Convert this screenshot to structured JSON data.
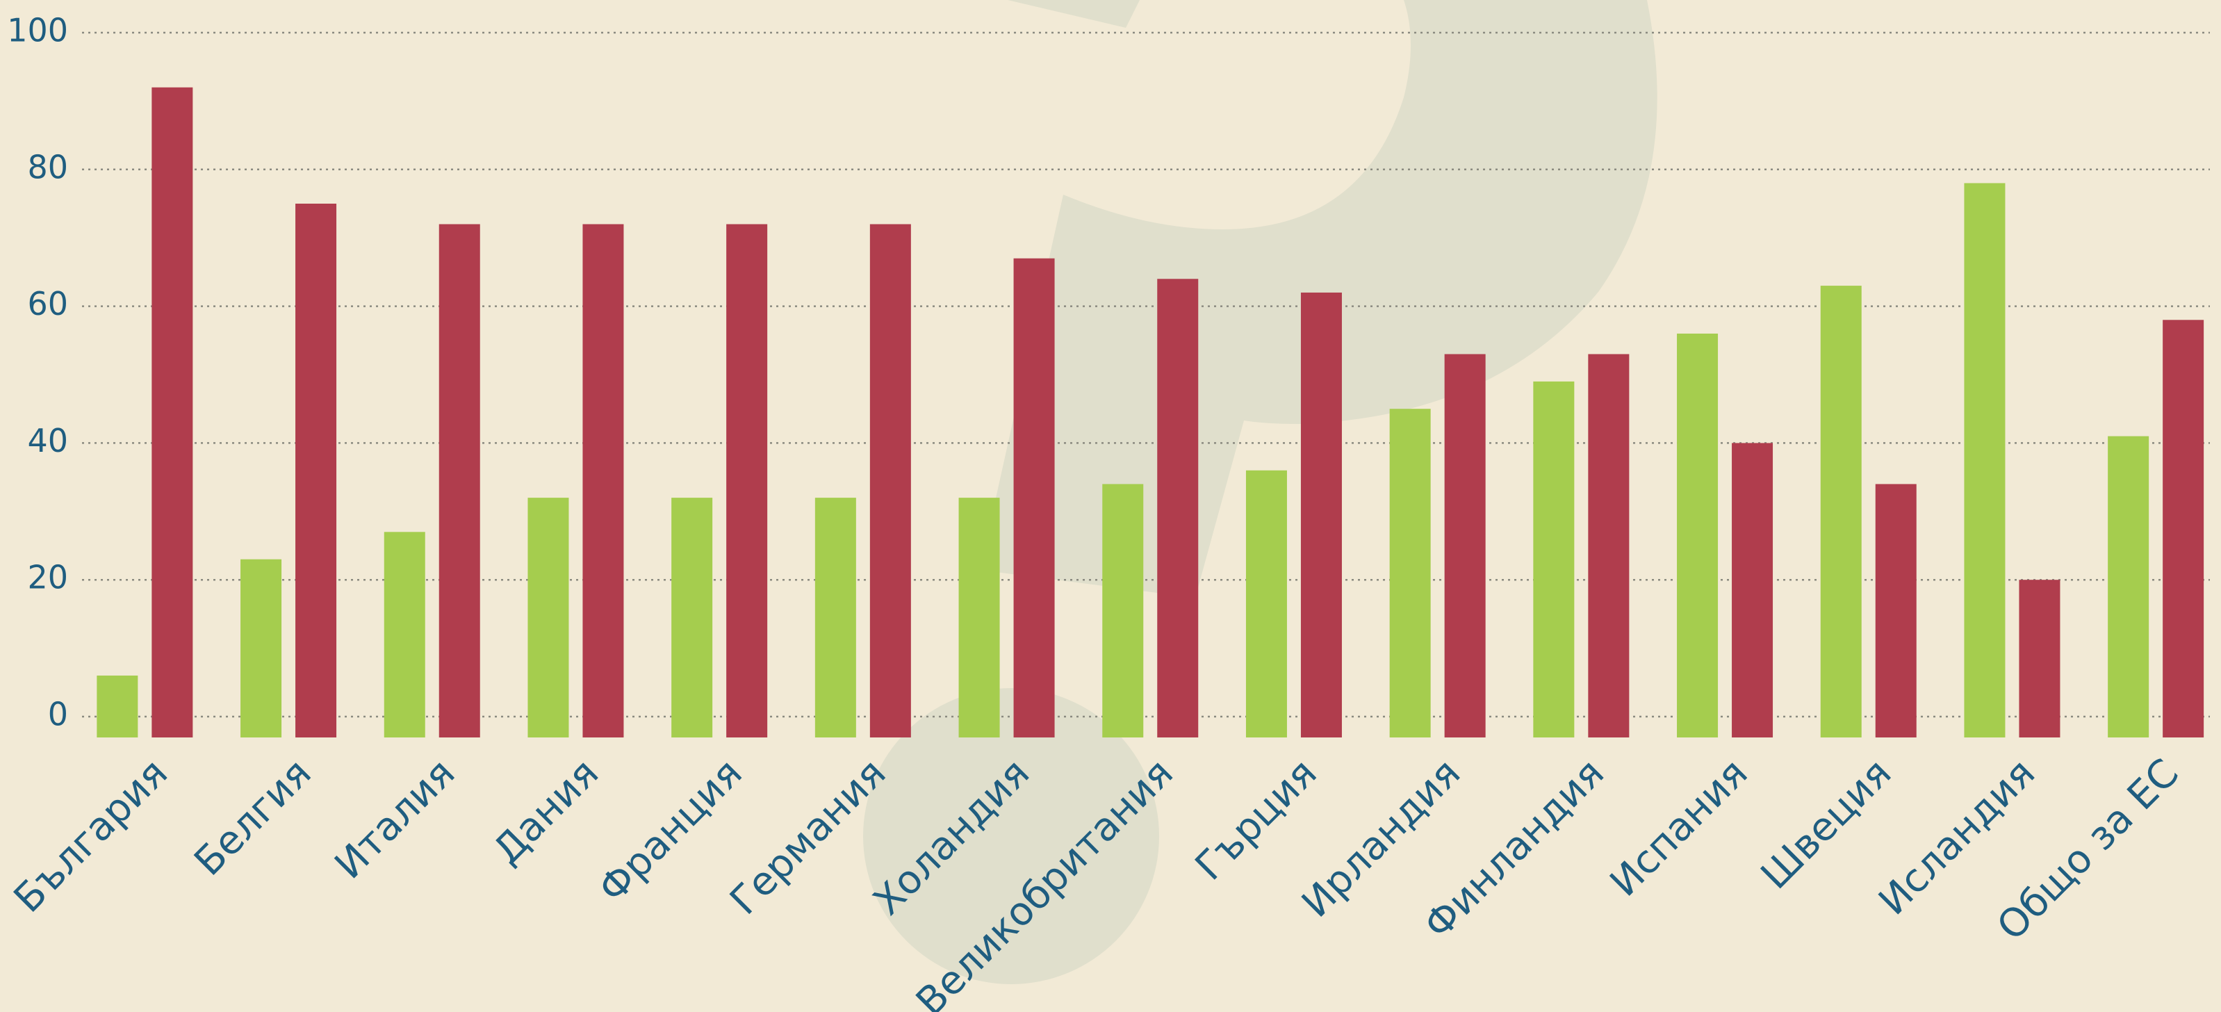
{
  "chart_data": {
    "type": "bar",
    "categories": [
      "България",
      "Белгия",
      "Италия",
      "Дания",
      "Франция",
      "Германия",
      "Холандия",
      "Великобритания",
      "Гърция",
      "Ирландия",
      "Финландия",
      "Испания",
      "Швеция",
      "Исландия",
      "Общо за ЕС"
    ],
    "series": [
      {
        "color": "#a5cd4e",
        "values": [
          6,
          23,
          27,
          32,
          32,
          32,
          32,
          34,
          36,
          45,
          49,
          56,
          63,
          78,
          41
        ]
      },
      {
        "color": "#b03d4d",
        "values": [
          92,
          75,
          72,
          72,
          72,
          72,
          67,
          64,
          62,
          53,
          53,
          40,
          34,
          20,
          58
        ]
      }
    ],
    "ylim": [
      0,
      100
    ],
    "yticks": [
      0,
      20,
      40,
      60,
      80,
      100
    ],
    "grid": true
  }
}
